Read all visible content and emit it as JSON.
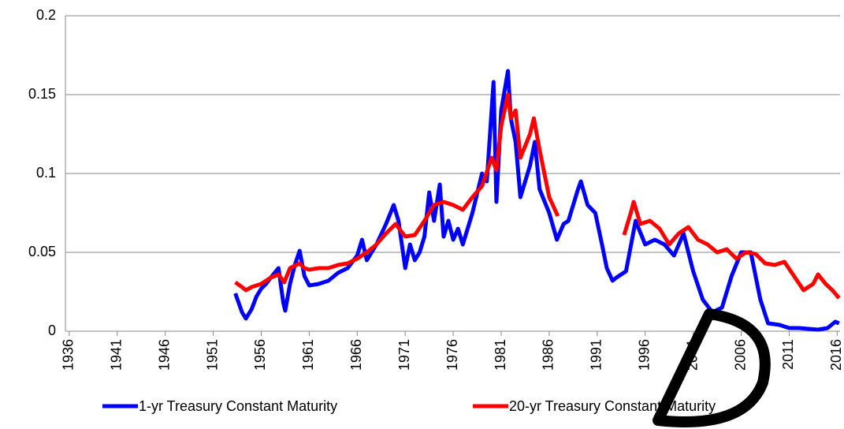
{
  "chart_data": {
    "type": "line",
    "xlim": [
      1935.6,
      2016.3
    ],
    "xticks": [
      1936,
      1941,
      1946,
      1951,
      1956,
      1961,
      1966,
      1971,
      1976,
      1981,
      1986,
      1991,
      1996,
      2001,
      2006,
      2011,
      2016
    ],
    "ylim": [
      0,
      0.2
    ],
    "yticks": [
      0,
      0.05,
      0.1,
      0.15,
      0.2
    ],
    "grid": true,
    "legend": "bottom",
    "series": [
      {
        "name": "1-yr Treasury Constant Maturity",
        "color": "#0000ff",
        "x": [
          1953.3,
          1954.0,
          1954.4,
          1955.0,
          1955.5,
          1956.0,
          1956.5,
          1957.0,
          1957.8,
          1958.3,
          1958.5,
          1959.0,
          1959.5,
          1960.0,
          1960.5,
          1961.0,
          1962.0,
          1963.0,
          1964.0,
          1965.0,
          1966.0,
          1966.5,
          1967.0,
          1968.0,
          1969.0,
          1969.8,
          1970.3,
          1971.0,
          1971.5,
          1972.0,
          1972.5,
          1973.0,
          1973.5,
          1974.0,
          1974.6,
          1975.0,
          1975.5,
          1976.0,
          1976.5,
          1977.0,
          1978.0,
          1979.0,
          1979.5,
          1980.2,
          1980.5,
          1981.0,
          1981.7,
          1982.0,
          1982.5,
          1983.0,
          1983.5,
          1984.0,
          1984.5,
          1985.0,
          1986.0,
          1986.8,
          1987.5,
          1988.0,
          1989.0,
          1989.3,
          1990.0,
          1990.8,
          1991.5,
          1992.0,
          1992.6,
          1993.0,
          1994.0,
          1995.0,
          1996.0,
          1997.0,
          1998.0,
          1999.0,
          2000.0,
          2001.0,
          2002.0,
          2003.0,
          2004.0,
          2005.0,
          2006.0,
          2007.0,
          2008.0,
          2008.8,
          2010.0,
          2011.0,
          2012.0,
          2013.0,
          2014.0,
          2015.0,
          2015.8,
          2016.2
        ],
        "values": [
          0.024,
          0.012,
          0.008,
          0.014,
          0.022,
          0.027,
          0.03,
          0.034,
          0.04,
          0.018,
          0.013,
          0.03,
          0.042,
          0.051,
          0.035,
          0.029,
          0.03,
          0.032,
          0.037,
          0.04,
          0.048,
          0.058,
          0.045,
          0.055,
          0.068,
          0.08,
          0.07,
          0.04,
          0.055,
          0.045,
          0.05,
          0.06,
          0.088,
          0.07,
          0.093,
          0.06,
          0.07,
          0.058,
          0.065,
          0.055,
          0.075,
          0.1,
          0.095,
          0.158,
          0.082,
          0.14,
          0.165,
          0.135,
          0.12,
          0.085,
          0.095,
          0.105,
          0.12,
          0.09,
          0.075,
          0.058,
          0.068,
          0.07,
          0.09,
          0.095,
          0.08,
          0.075,
          0.055,
          0.04,
          0.032,
          0.034,
          0.038,
          0.07,
          0.055,
          0.058,
          0.055,
          0.048,
          0.062,
          0.038,
          0.02,
          0.012,
          0.015,
          0.035,
          0.05,
          0.05,
          0.02,
          0.005,
          0.004,
          0.002,
          0.002,
          0.0015,
          0.001,
          0.002,
          0.006,
          0.005
        ]
      },
      {
        "name": "20-yr Treasury Constant Maturity",
        "color": "#ff0000",
        "x": [
          1953.3,
          1954.0,
          1954.4,
          1955.0,
          1956.0,
          1957.0,
          1957.8,
          1958.4,
          1959.0,
          1960.0,
          1960.5,
          1961.0,
          1962.0,
          1963.0,
          1964.0,
          1965.0,
          1966.0,
          1967.0,
          1968.0,
          1969.0,
          1970.0,
          1971.0,
          1972.0,
          1973.0,
          1974.0,
          1975.0,
          1976.0,
          1977.0,
          1978.0,
          1979.0,
          1980.0,
          1980.5,
          1981.0,
          1981.7,
          1982.0,
          1982.5,
          1983.0,
          1984.0,
          1984.4,
          1985.0,
          1986.0,
          1986.9,
          null,
          1993.8,
          1994.5,
          1994.8,
          1995.5,
          1996.5,
          1997.5,
          1998.5,
          1999.5,
          2000.5,
          2001.5,
          2002.5,
          2003.5,
          2004.5,
          2005.5,
          2006.5,
          2007.5,
          2008.5,
          2009.5,
          2010.5,
          2011.5,
          2012.5,
          2013.5,
          2014.0,
          2014.8,
          2015.5,
          2016.2
        ],
        "values": [
          0.031,
          0.028,
          0.026,
          0.028,
          0.03,
          0.034,
          0.036,
          0.031,
          0.04,
          0.043,
          0.04,
          0.039,
          0.04,
          0.04,
          0.042,
          0.043,
          0.046,
          0.05,
          0.055,
          0.062,
          0.068,
          0.06,
          0.061,
          0.07,
          0.08,
          0.082,
          0.08,
          0.077,
          0.085,
          0.092,
          0.11,
          0.102,
          0.13,
          0.15,
          0.135,
          0.14,
          0.11,
          0.125,
          0.135,
          0.115,
          0.085,
          0.073,
          null,
          0.061,
          0.075,
          0.082,
          0.068,
          0.07,
          0.065,
          0.055,
          0.062,
          0.066,
          0.058,
          0.055,
          0.05,
          0.052,
          0.046,
          0.05,
          0.049,
          0.043,
          0.042,
          0.044,
          0.035,
          0.026,
          0.03,
          0.036,
          0.03,
          0.026,
          0.021
        ]
      }
    ]
  }
}
